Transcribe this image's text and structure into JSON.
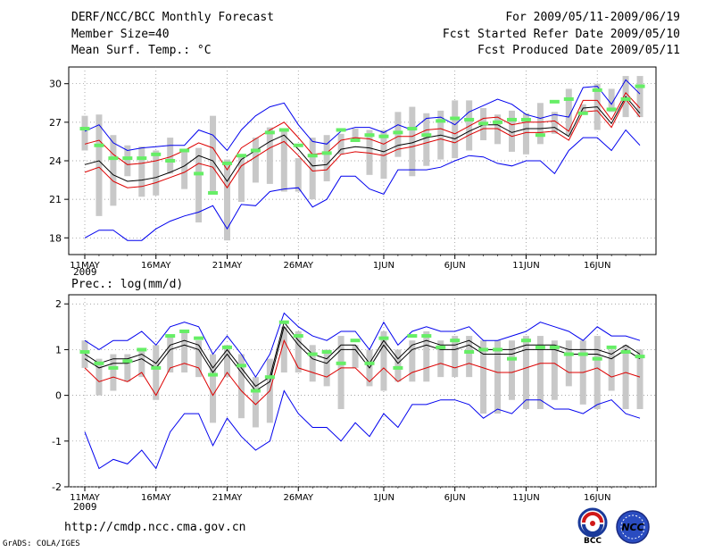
{
  "header": {
    "title": "DERF/NCC/BCC Monthly Forecast",
    "member_size": "Member Size=40",
    "variable": "Mean Surf. Temp.: °C",
    "period": "For 2009/05/11-2009/06/19",
    "fcst_started": "Fcst Started Refer Date 2009/05/10",
    "fcst_produced": "Fcst Produced Date 2009/05/11"
  },
  "footer": {
    "url": "http://cmdp.ncc.cma.gov.cn",
    "grads": "GrADS: COLA/IGES",
    "bcc_logo_text": "BCC",
    "ncc_logo_text": "NCC"
  },
  "colors": {
    "envelope": "#0000ee",
    "ensemble_mean": "#000000",
    "lower_red": "#dd0000",
    "upper_red": "#dd0000",
    "spread_bar": "#c8c8c8",
    "marker": "#66ee66",
    "grid": "#888888"
  },
  "chart_data": [
    {
      "type": "line",
      "title": "Mean Surf. Temp.: °C",
      "xlabel": "",
      "ylabel": "°C",
      "ylim": [
        16.7,
        31.3
      ],
      "yticks": [
        18,
        21,
        24,
        27,
        30
      ],
      "x_tick_labels": [
        "11MAY",
        "16MAY",
        "21MAY",
        "26MAY",
        "1JUN",
        "6JUN",
        "11JUN",
        "16JUN"
      ],
      "x_tick_days": [
        1,
        6,
        11,
        16,
        22,
        27,
        32,
        37
      ],
      "year_label": "2009",
      "grid": true,
      "days": 40,
      "series": [
        {
          "name": "upper",
          "color": "blue",
          "values": [
            26.3,
            26.8,
            25.4,
            24.8,
            25.0,
            25.1,
            25.2,
            25.2,
            26.4,
            26.0,
            24.8,
            26.4,
            27.5,
            28.2,
            28.5,
            26.8,
            25.5,
            25.3,
            26.3,
            26.6,
            26.6,
            26.2,
            26.8,
            26.4,
            27.3,
            27.4,
            26.8,
            27.8,
            28.3,
            28.8,
            28.4,
            27.6,
            27.3,
            27.6,
            27.4,
            29.7,
            29.8,
            28.4,
            30.3,
            29.2
          ]
        },
        {
          "name": "upper_red",
          "color": "red",
          "values": [
            25.3,
            25.6,
            24.5,
            23.7,
            23.8,
            24.0,
            24.3,
            24.8,
            25.4,
            25.0,
            23.3,
            25.0,
            25.7,
            26.4,
            27.0,
            25.8,
            24.5,
            24.6,
            25.6,
            25.8,
            25.7,
            25.3,
            25.9,
            25.9,
            26.4,
            26.5,
            26.1,
            26.7,
            27.3,
            27.4,
            26.8,
            27.0,
            27.0,
            27.1,
            26.3,
            28.7,
            28.7,
            27.2,
            29.3,
            28.1
          ]
        },
        {
          "name": "ensemble_mean",
          "color": "black",
          "values": [
            23.7,
            24.0,
            22.9,
            22.4,
            22.5,
            22.7,
            23.1,
            23.6,
            24.4,
            24.0,
            22.4,
            24.1,
            24.8,
            25.5,
            26.0,
            24.9,
            23.6,
            23.7,
            24.9,
            25.1,
            25.0,
            24.7,
            25.2,
            25.4,
            25.8,
            26.0,
            25.7,
            26.3,
            26.8,
            26.8,
            26.2,
            26.5,
            26.5,
            26.6,
            25.9,
            28.1,
            28.2,
            26.9,
            29.0,
            27.7
          ]
        },
        {
          "name": "lower_red",
          "color": "red",
          "values": [
            23.1,
            23.5,
            22.4,
            21.9,
            22.0,
            22.3,
            22.7,
            23.1,
            23.8,
            23.5,
            21.9,
            23.6,
            24.3,
            25.0,
            25.5,
            24.4,
            23.2,
            23.3,
            24.5,
            24.7,
            24.6,
            24.4,
            24.9,
            25.1,
            25.4,
            25.7,
            25.4,
            26.0,
            26.5,
            26.5,
            25.9,
            26.2,
            26.2,
            26.3,
            25.6,
            27.8,
            27.9,
            26.6,
            28.8,
            27.4
          ]
        },
        {
          "name": "lower",
          "color": "blue",
          "values": [
            18.0,
            18.6,
            18.6,
            17.8,
            17.8,
            18.7,
            19.3,
            19.7,
            20.0,
            20.5,
            18.7,
            20.6,
            20.5,
            21.6,
            21.8,
            21.9,
            20.4,
            21.0,
            22.8,
            22.8,
            21.8,
            21.4,
            23.3,
            23.3,
            23.3,
            23.5,
            24.0,
            24.4,
            24.3,
            23.8,
            23.6,
            24.0,
            24.0,
            23.0,
            24.8,
            25.8,
            25.8,
            24.8,
            26.4,
            25.2
          ]
        }
      ],
      "spread_bars": {
        "low": [
          24.8,
          19.7,
          20.5,
          22.8,
          21.2,
          21.3,
          23.0,
          21.8,
          19.2,
          21.6,
          17.8,
          20.8,
          22.3,
          22.2,
          21.6,
          21.6,
          21.0,
          22.4,
          24.5,
          25.6,
          22.9,
          22.6,
          24.3,
          22.8,
          23.6,
          24.1,
          24.2,
          24.8,
          25.6,
          25.3,
          24.7,
          24.5,
          25.3,
          26.1,
          26.0,
          27.6,
          26.4,
          27.8,
          27.4,
          27.4
        ],
        "high": [
          27.5,
          27.6,
          26.0,
          25.2,
          25.1,
          24.8,
          25.8,
          24.9,
          25.0,
          27.5,
          24.1,
          24.5,
          25.8,
          26.6,
          26.5,
          24.2,
          25.8,
          26.0,
          26.1,
          26.5,
          26.4,
          26.4,
          27.8,
          28.2,
          27.7,
          27.9,
          28.7,
          28.7,
          28.1,
          27.6,
          27.9,
          27.7,
          28.5,
          27.8,
          29.6,
          28.4,
          30.0,
          29.6,
          30.6,
          30.6
        ]
      },
      "markers": [
        26.5,
        25.2,
        24.2,
        24.2,
        24.2,
        24.5,
        24.0,
        24.8,
        23.0,
        21.5,
        23.8,
        24.4,
        24.8,
        26.2,
        26.4,
        25.2,
        24.4,
        24.6,
        26.4,
        25.6,
        26.0,
        25.9,
        26.2,
        26.5,
        26.0,
        27.1,
        27.3,
        27.2,
        26.9,
        27.0,
        27.2,
        27.2,
        26.0,
        28.6,
        28.8,
        27.7,
        29.5,
        28.0,
        28.8,
        29.8
      ]
    },
    {
      "type": "line",
      "title": "Prec.: log(mm/d)",
      "xlabel": "",
      "ylabel": "log(mm/d)",
      "ylim": [
        -2.0,
        2.2
      ],
      "yticks": [
        -2,
        -1,
        0,
        1,
        2
      ],
      "x_tick_labels": [
        "11MAY",
        "16MAY",
        "21MAY",
        "26MAY",
        "1JUN",
        "6JUN",
        "11JUN",
        "16JUN"
      ],
      "x_tick_days": [
        1,
        6,
        11,
        16,
        22,
        27,
        32,
        37
      ],
      "year_label": "2009",
      "grid": true,
      "days": 40,
      "series": [
        {
          "name": "upper",
          "color": "blue",
          "values": [
            1.2,
            1.0,
            1.2,
            1.2,
            1.4,
            1.1,
            1.5,
            1.6,
            1.5,
            0.9,
            1.3,
            0.9,
            0.4,
            0.9,
            1.8,
            1.5,
            1.3,
            1.2,
            1.4,
            1.4,
            1.0,
            1.6,
            1.1,
            1.4,
            1.5,
            1.4,
            1.4,
            1.5,
            1.2,
            1.2,
            1.3,
            1.4,
            1.6,
            1.5,
            1.4,
            1.2,
            1.5,
            1.3,
            1.3,
            1.2
          ]
        },
        {
          "name": "ensemble_mean_upper",
          "color": "black",
          "values": [
            0.9,
            0.7,
            0.8,
            0.8,
            0.9,
            0.7,
            1.1,
            1.2,
            1.1,
            0.6,
            1.0,
            0.6,
            0.2,
            0.4,
            1.6,
            1.2,
            0.9,
            0.8,
            1.1,
            1.1,
            0.7,
            1.2,
            0.8,
            1.1,
            1.2,
            1.1,
            1.1,
            1.2,
            1.0,
            1.0,
            1.0,
            1.1,
            1.1,
            1.1,
            1.0,
            1.0,
            1.0,
            0.9,
            1.1,
            0.9
          ]
        },
        {
          "name": "ensemble_mean",
          "color": "black",
          "values": [
            0.8,
            0.6,
            0.7,
            0.7,
            0.8,
            0.6,
            1.0,
            1.1,
            1.0,
            0.5,
            0.9,
            0.5,
            0.1,
            0.3,
            1.5,
            1.1,
            0.8,
            0.7,
            1.0,
            1.0,
            0.6,
            1.1,
            0.7,
            1.0,
            1.1,
            1.0,
            1.0,
            1.1,
            0.9,
            0.9,
            0.9,
            1.0,
            1.0,
            1.0,
            0.9,
            0.9,
            0.9,
            0.8,
            1.0,
            0.8
          ]
        },
        {
          "name": "lower_red",
          "color": "red",
          "values": [
            0.6,
            0.3,
            0.4,
            0.3,
            0.5,
            0.0,
            0.6,
            0.7,
            0.6,
            0.0,
            0.5,
            0.1,
            -0.2,
            0.1,
            1.2,
            0.6,
            0.5,
            0.4,
            0.6,
            0.6,
            0.3,
            0.6,
            0.3,
            0.5,
            0.6,
            0.7,
            0.6,
            0.7,
            0.6,
            0.5,
            0.5,
            0.6,
            0.7,
            0.7,
            0.5,
            0.5,
            0.6,
            0.4,
            0.5,
            0.4
          ]
        },
        {
          "name": "lower",
          "color": "blue",
          "values": [
            -0.8,
            -1.6,
            -1.4,
            -1.5,
            -1.2,
            -1.6,
            -0.8,
            -0.4,
            -0.4,
            -1.1,
            -0.5,
            -0.9,
            -1.2,
            -1.0,
            0.1,
            -0.4,
            -0.7,
            -0.7,
            -1.0,
            -0.6,
            -0.9,
            -0.4,
            -0.7,
            -0.2,
            -0.2,
            -0.1,
            -0.1,
            -0.2,
            -0.5,
            -0.3,
            -0.4,
            -0.1,
            -0.1,
            -0.3,
            -0.3,
            -0.4,
            -0.2,
            -0.1,
            -0.4,
            -0.5
          ]
        }
      ],
      "spread_bars": {
        "low": [
          0.6,
          0.0,
          0.1,
          0.3,
          0.4,
          -0.1,
          0.5,
          0.5,
          0.4,
          -0.6,
          0.4,
          -0.5,
          -0.7,
          -0.6,
          0.5,
          0.5,
          0.3,
          0.2,
          -0.3,
          0.6,
          0.2,
          0.1,
          0.3,
          0.3,
          0.3,
          0.4,
          0.4,
          0.4,
          -0.4,
          -0.4,
          -0.1,
          -0.3,
          -0.3,
          -0.1,
          0.2,
          -0.2,
          -0.3,
          0.1,
          -0.3,
          -0.3
        ],
        "high": [
          1.2,
          0.8,
          0.9,
          0.9,
          1.0,
          1.1,
          1.3,
          1.4,
          1.2,
          0.9,
          1.1,
          0.9,
          0.4,
          0.8,
          1.5,
          1.4,
          1.1,
          1.0,
          1.3,
          1.1,
          1.0,
          1.4,
          1.0,
          1.2,
          1.4,
          1.2,
          1.3,
          1.3,
          1.2,
          1.2,
          1.2,
          1.3,
          1.3,
          1.2,
          1.2,
          1.2,
          1.3,
          1.0,
          1.1,
          1.0
        ]
      },
      "markers": [
        0.95,
        0.7,
        0.6,
        0.75,
        1.0,
        0.6,
        1.3,
        1.4,
        1.25,
        0.45,
        1.05,
        0.65,
        0.1,
        0.4,
        1.6,
        1.3,
        0.9,
        0.95,
        0.7,
        1.2,
        0.7,
        1.25,
        0.6,
        1.3,
        1.3,
        1.05,
        1.2,
        0.95,
        1.0,
        1.0,
        0.8,
        1.2,
        1.05,
        1.05,
        0.9,
        0.9,
        0.8,
        1.05,
        0.95,
        0.85
      ]
    }
  ]
}
